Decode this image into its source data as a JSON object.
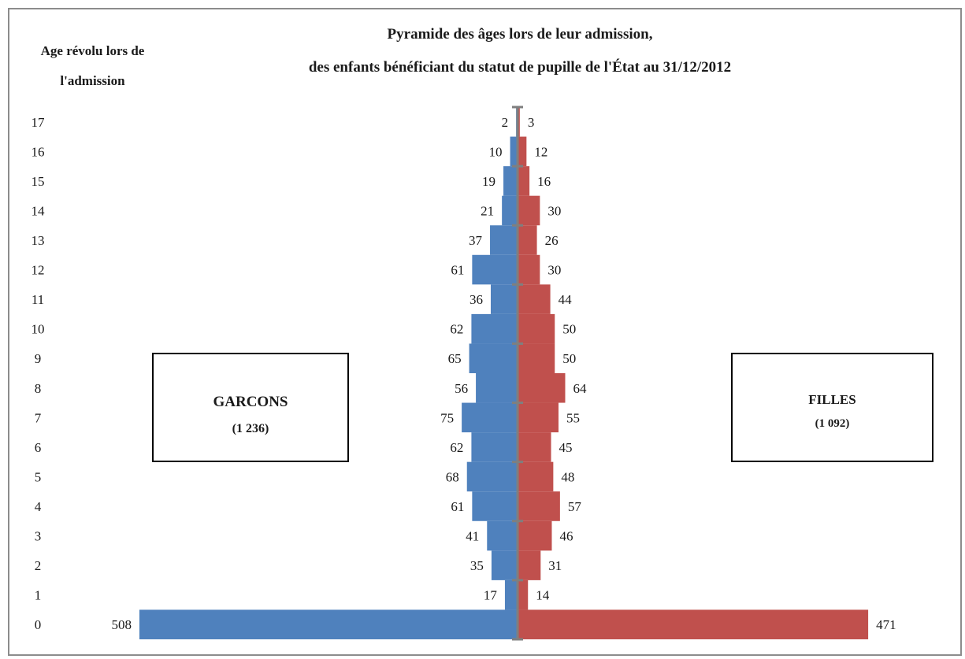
{
  "chart_data": {
    "type": "bar",
    "orientation": "horizontal-pyramid",
    "title_line1": "Pyramide des âges lors de leur admission,",
    "title_line2": "des enfants bénéficiant du statut de pupille de l'État au 31/12/2012",
    "ylabel_line1": "Age révolu lors de",
    "ylabel_line2": "l'admission",
    "categories": [
      "0",
      "1",
      "2",
      "3",
      "4",
      "5",
      "6",
      "7",
      "8",
      "9",
      "10",
      "11",
      "12",
      "13",
      "14",
      "15",
      "16",
      "17"
    ],
    "series": [
      {
        "name": "GARCONS",
        "total": "(1 236)",
        "color": "#4f81bd",
        "values": [
          508,
          17,
          35,
          41,
          61,
          68,
          62,
          75,
          56,
          65,
          62,
          36,
          61,
          37,
          21,
          19,
          10,
          2
        ]
      },
      {
        "name": "FILLES",
        "total": "(1 092)",
        "color": "#c0504d",
        "values": [
          471,
          14,
          31,
          46,
          57,
          48,
          45,
          55,
          64,
          50,
          50,
          44,
          30,
          26,
          30,
          16,
          12,
          3
        ]
      }
    ],
    "axis_color": "#7f7f7f"
  }
}
